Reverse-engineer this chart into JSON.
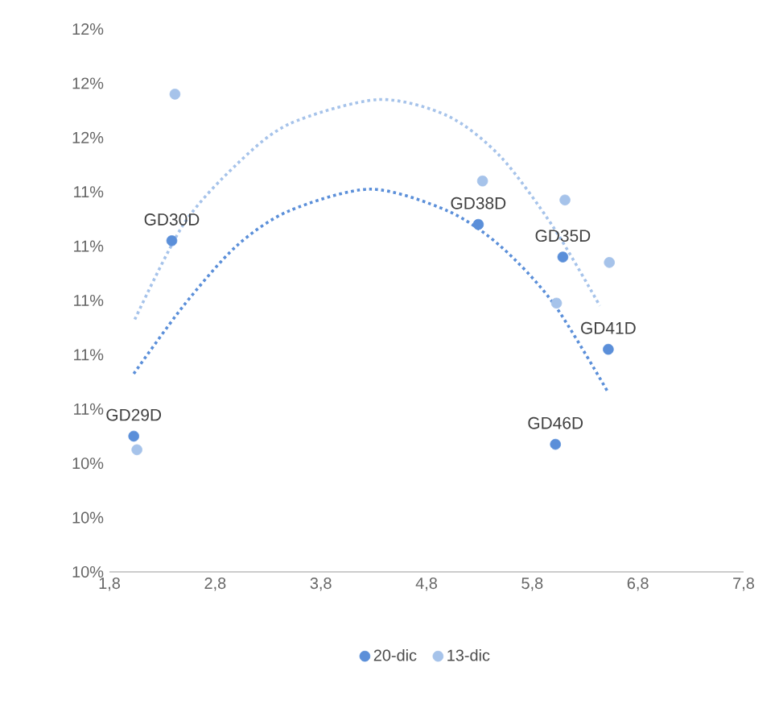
{
  "chart_data": {
    "type": "scatter",
    "series": [
      {
        "name": "20-dic",
        "marker": "circle",
        "color": "#5b8fd9",
        "x": [
          2.03,
          2.39,
          5.29,
          6.09,
          6.52,
          6.02
        ],
        "values": [
          10.5,
          11.22,
          11.28,
          11.16,
          10.82,
          10.47
        ]
      },
      {
        "name": "13-dic",
        "marker": "circle",
        "color": "#a6c3ea",
        "x": [
          2.06,
          2.42,
          5.33,
          6.11,
          6.03,
          6.53
        ],
        "values": [
          10.45,
          11.76,
          11.44,
          11.37,
          10.99,
          11.14
        ]
      },
      {
        "type": "line",
        "line_style": "dotted",
        "marker": "none",
        "color": "#5b8fd9",
        "x": [
          2.03,
          2.5,
          3.0,
          3.5,
          4.27,
          5.0,
          5.5,
          6.0,
          6.52
        ],
        "values": [
          10.73,
          10.98,
          11.2,
          11.33,
          11.41,
          11.33,
          11.2,
          10.99,
          10.66
        ]
      },
      {
        "type": "line",
        "line_style": "dotted",
        "marker": "none",
        "color": "#a6c3ea",
        "x": [
          2.04,
          2.5,
          3.0,
          3.5,
          4.34,
          5.0,
          5.5,
          6.0,
          6.44
        ],
        "values": [
          10.93,
          11.28,
          11.5,
          11.65,
          11.74,
          11.68,
          11.53,
          11.27,
          10.98
        ]
      }
    ],
    "annotations": [
      {
        "text": "GD29D",
        "x": 2.03,
        "y": 10.5
      },
      {
        "text": "GD30D",
        "x": 2.39,
        "y": 11.22
      },
      {
        "text": "GD38D",
        "x": 5.29,
        "y": 11.28
      },
      {
        "text": "GD35D",
        "x": 6.09,
        "y": 11.16
      },
      {
        "text": "GD41D",
        "x": 6.52,
        "y": 10.82
      },
      {
        "text": "GD46D",
        "x": 6.02,
        "y": 10.47
      }
    ],
    "xlim": [
      1.8,
      7.8
    ],
    "xticks": [
      {
        "value": 1.8,
        "label": "1,8"
      },
      {
        "value": 2.8,
        "label": "2,8"
      },
      {
        "value": 3.8,
        "label": "3,8"
      },
      {
        "value": 4.8,
        "label": "4,8"
      },
      {
        "value": 5.8,
        "label": "5,8"
      },
      {
        "value": 6.8,
        "label": "6,8"
      },
      {
        "value": 7.8,
        "label": "7,8"
      }
    ],
    "ylim": [
      10.0,
      12.0
    ],
    "yticks": [
      {
        "value": 10.0,
        "label": "10%"
      },
      {
        "value": 10.2,
        "label": "10%"
      },
      {
        "value": 10.4,
        "label": "10%"
      },
      {
        "value": 10.6,
        "label": "11%"
      },
      {
        "value": 10.8,
        "label": "11%"
      },
      {
        "value": 11.0,
        "label": "11%"
      },
      {
        "value": 11.2,
        "label": "11%"
      },
      {
        "value": 11.4,
        "label": "11%"
      },
      {
        "value": 11.6,
        "label": "12%"
      },
      {
        "value": 11.8,
        "label": "12%"
      },
      {
        "value": 12.0,
        "label": "12%"
      }
    ],
    "grid": false,
    "legend": "bottom"
  }
}
